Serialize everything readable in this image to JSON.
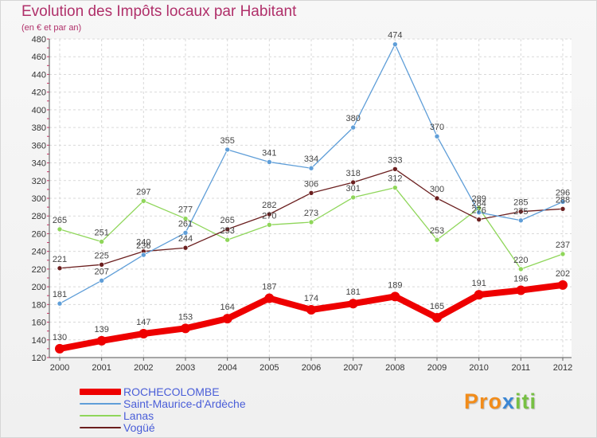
{
  "title": "Evolution des Impôts locaux par Habitant",
  "subtitle": "(en € et par an)",
  "brand": {
    "part1": "Pro",
    "part2": "x",
    "part3": "iti"
  },
  "chart_data": {
    "type": "line",
    "x": [
      2000,
      2001,
      2002,
      2003,
      2004,
      2005,
      2006,
      2007,
      2008,
      2009,
      2010,
      2011,
      2012
    ],
    "ylim": [
      120,
      480
    ],
    "yticks": [
      120,
      140,
      160,
      180,
      200,
      220,
      240,
      260,
      280,
      300,
      320,
      340,
      360,
      380,
      400,
      420,
      440,
      460,
      480
    ],
    "grid": true,
    "legend_position": "bottom-left",
    "series": [
      {
        "name": "ROCHECOLOMBE",
        "color": "#ee0000",
        "values": [
          130,
          139,
          147,
          153,
          164,
          187,
          174,
          181,
          189,
          165,
          191,
          196,
          202
        ]
      },
      {
        "name": "Saint-Maurice-d'Ardèche",
        "color": "#5f9ed8",
        "values": [
          181,
          207,
          236,
          261,
          355,
          341,
          334,
          380,
          474,
          370,
          284,
          275,
          296
        ]
      },
      {
        "name": "Lanas",
        "color": "#8fd65a",
        "values": [
          265,
          251,
          297,
          277,
          253,
          270,
          273,
          301,
          312,
          253,
          289,
          220,
          237
        ]
      },
      {
        "name": "Vogüé",
        "color": "#6b1f1f",
        "values": [
          221,
          225,
          240,
          244,
          265,
          282,
          306,
          318,
          333,
          300,
          276,
          285,
          288
        ]
      }
    ]
  }
}
